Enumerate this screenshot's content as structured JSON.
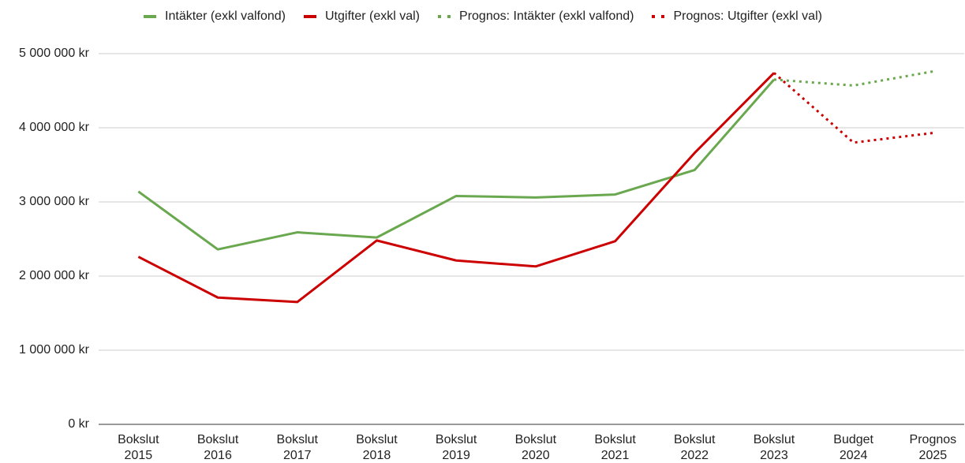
{
  "chart_data": {
    "type": "line",
    "categories": [
      "Bokslut 2015",
      "Bokslut 2016",
      "Bokslut 2017",
      "Bokslut 2018",
      "Bokslut 2019",
      "Bokslut 2020",
      "Bokslut 2021",
      "Bokslut 2022",
      "Bokslut 2023",
      "Budget 2024",
      "Prognos 2025"
    ],
    "series": [
      {
        "name": "Intäkter (exkl valfond)",
        "color": "#6aa84f",
        "line_style": "solid",
        "values": [
          3140000,
          2360000,
          2590000,
          2520000,
          3080000,
          3060000,
          3100000,
          3430000,
          4650000,
          null,
          null
        ]
      },
      {
        "name": "Utgifter (exkl val)",
        "color": "#cc0000",
        "line_style": "solid",
        "values": [
          2260000,
          1710000,
          1650000,
          2480000,
          2210000,
          2130000,
          2470000,
          3660000,
          4740000,
          null,
          null
        ]
      },
      {
        "name": "Prognos: Intäkter (exkl valfond)",
        "color": "#6aa84f",
        "line_style": "dotted",
        "values": [
          null,
          null,
          null,
          null,
          null,
          null,
          null,
          null,
          4650000,
          4570000,
          4760000
        ]
      },
      {
        "name": "Prognos: Utgifter (exkl val)",
        "color": "#cc0000",
        "line_style": "dotted",
        "values": [
          null,
          null,
          null,
          null,
          null,
          null,
          null,
          null,
          4740000,
          3800000,
          3930000
        ]
      }
    ],
    "ylim": [
      0,
      5000000
    ],
    "yticks": [
      {
        "value": 0,
        "label": "0 kr"
      },
      {
        "value": 1000000,
        "label": "1 000 000 kr"
      },
      {
        "value": 2000000,
        "label": "2 000 000 kr"
      },
      {
        "value": 3000000,
        "label": "3 000 000 kr"
      },
      {
        "value": 4000000,
        "label": "4 000 000 kr"
      },
      {
        "value": 5000000,
        "label": "5 000 000 kr"
      }
    ],
    "grid": true,
    "legend": "top"
  }
}
